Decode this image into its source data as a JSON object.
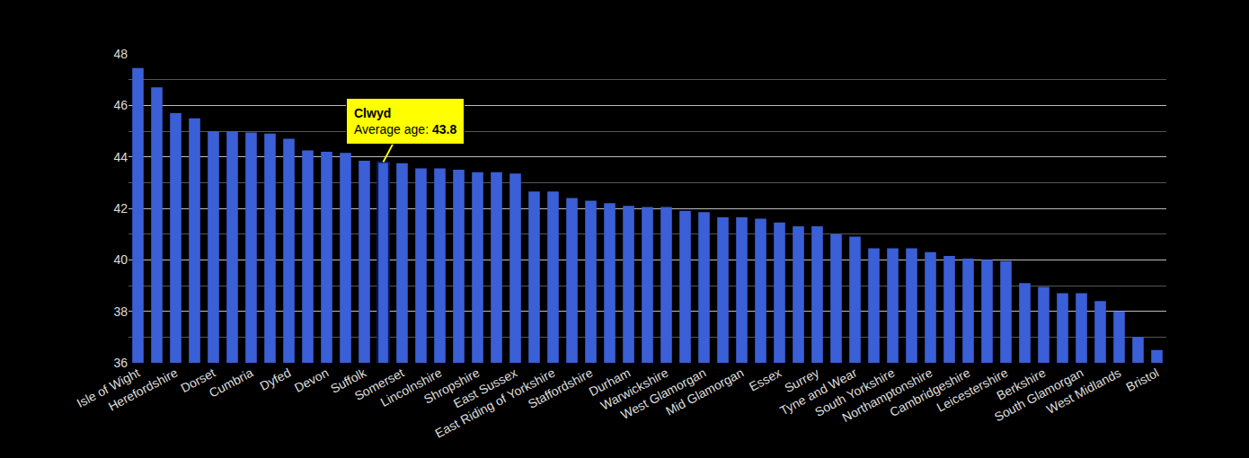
{
  "chart_data": {
    "type": "bar",
    "categories": [
      "Isle of Wight",
      null,
      "Herefordshire",
      null,
      "Dorset",
      null,
      "Cumbria",
      null,
      "Dyfed",
      null,
      "Devon",
      null,
      "Suffolk",
      null,
      "Somerset",
      null,
      "Lincolnshire",
      null,
      "Shropshire",
      null,
      "East Sussex",
      null,
      "East Riding of Yorkshire",
      null,
      "Staffordshire",
      null,
      "Durham",
      null,
      "Warwickshire",
      null,
      "West Glamorgan",
      null,
      "Mid Glamorgan",
      null,
      "Essex",
      null,
      "Surrey",
      null,
      "Tyne and Wear",
      null,
      "South Yorkshire",
      null,
      "Northamptonshire",
      null,
      "Cambridgeshire",
      null,
      "Leicestershire",
      null,
      "Berkshire",
      null,
      "South Glamorgan",
      null,
      "West Midlands",
      null,
      "Bristol"
    ],
    "values": [
      47.45,
      46.7,
      45.7,
      45.5,
      45.0,
      45.0,
      44.95,
      44.9,
      44.7,
      44.25,
      44.2,
      44.15,
      43.85,
      43.8,
      43.75,
      43.55,
      43.55,
      43.5,
      43.4,
      43.4,
      43.35,
      42.65,
      42.65,
      42.4,
      42.3,
      42.2,
      42.1,
      42.05,
      42.05,
      41.9,
      41.85,
      41.65,
      41.65,
      41.6,
      41.45,
      41.3,
      41.3,
      41.0,
      40.9,
      40.45,
      40.45,
      40.45,
      40.3,
      40.15,
      40.05,
      40.0,
      39.95,
      39.1,
      38.95,
      38.7,
      38.7,
      38.4,
      38.0,
      37.0,
      36.5
    ],
    "color": "#3b5fd6",
    "ylim": [
      36,
      48
    ],
    "yticks": [
      36,
      38,
      40,
      42,
      44,
      46,
      48
    ],
    "grid": true,
    "annotation": {
      "index": 13,
      "title": "Clwyd",
      "label": "Average age:",
      "value": 43.8
    }
  }
}
